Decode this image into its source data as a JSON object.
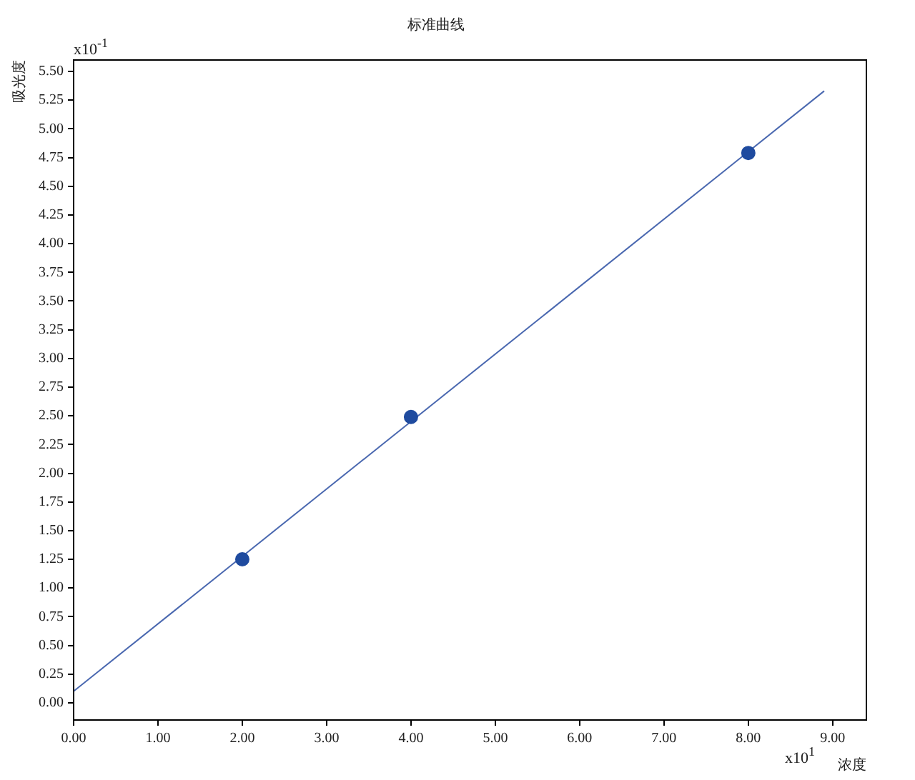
{
  "chart_data": {
    "type": "scatter",
    "title": "标准曲线",
    "xlabel": "浓度",
    "ylabel": "吸光度",
    "annotations": [
      "x10$^{-1}$",
      "x10$^{1}$"
    ],
    "series": [
      {
        "color": "#1f4b9f",
        "x": [
          2,
          4,
          8
        ],
        "values": [
          1.25,
          2.49,
          4.79
        ],
        "marker": "circle"
      },
      {
        "type": "line",
        "color": "#4a68b0",
        "x": [
          0,
          8.9
        ],
        "values": [
          0.1,
          5.33
        ],
        "marker": "none"
      }
    ],
    "xlim": [
      0,
      9.4
    ],
    "ylim": [
      -0.15,
      5.6
    ],
    "xticks": [
      {
        "value": 0,
        "label": "0.00"
      },
      {
        "value": 1,
        "label": "1.00"
      },
      {
        "value": 2,
        "label": "2.00"
      },
      {
        "value": 3,
        "label": "3.00"
      },
      {
        "value": 4,
        "label": "4.00"
      },
      {
        "value": 5,
        "label": "5.00"
      },
      {
        "value": 6,
        "label": "6.00"
      },
      {
        "value": 7,
        "label": "7.00"
      },
      {
        "value": 8,
        "label": "8.00"
      },
      {
        "value": 9,
        "label": "9.00"
      }
    ],
    "yticks": [
      {
        "value": 0,
        "label": "0.00"
      },
      {
        "value": 0.25,
        "label": "0.25"
      },
      {
        "value": 0.5,
        "label": "0.50"
      },
      {
        "value": 0.75,
        "label": "0.75"
      },
      {
        "value": 1,
        "label": "1.00"
      },
      {
        "value": 1.25,
        "label": "1.25"
      },
      {
        "value": 1.5,
        "label": "1.50"
      },
      {
        "value": 1.75,
        "label": "1.75"
      },
      {
        "value": 2,
        "label": "2.00"
      },
      {
        "value": 2.25,
        "label": "2.25"
      },
      {
        "value": 2.5,
        "label": "2.50"
      },
      {
        "value": 2.75,
        "label": "2.75"
      },
      {
        "value": 3,
        "label": "3.00"
      },
      {
        "value": 3.25,
        "label": "3.25"
      },
      {
        "value": 3.5,
        "label": "3.50"
      },
      {
        "value": 3.75,
        "label": "3.75"
      },
      {
        "value": 4,
        "label": "4.00"
      },
      {
        "value": 4.25,
        "label": "4.25"
      },
      {
        "value": 4.5,
        "label": "4.50"
      },
      {
        "value": 4.75,
        "label": "4.75"
      },
      {
        "value": 5,
        "label": "5.00"
      },
      {
        "value": 5.25,
        "label": "5.25"
      },
      {
        "value": 5.5,
        "label": "5.50"
      }
    ],
    "grid": false,
    "legend": false
  }
}
